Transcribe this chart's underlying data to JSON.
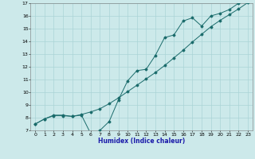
{
  "xlabel": "Humidex (Indice chaleur)",
  "xlim": [
    -0.5,
    23.5
  ],
  "ylim": [
    7,
    17
  ],
  "yticks": [
    7,
    8,
    9,
    10,
    11,
    12,
    13,
    14,
    15,
    16,
    17
  ],
  "xticks": [
    0,
    1,
    2,
    3,
    4,
    5,
    6,
    7,
    8,
    9,
    10,
    11,
    12,
    13,
    14,
    15,
    16,
    17,
    18,
    19,
    20,
    21,
    22,
    23
  ],
  "background_color": "#cce9ea",
  "grid_color": "#aad4d6",
  "line_color": "#1a6b6b",
  "line1_x": [
    0,
    1,
    2,
    3,
    4,
    5,
    6,
    7,
    8,
    9,
    10,
    11,
    12,
    13,
    14,
    15,
    16,
    17,
    18,
    19,
    20,
    21,
    22,
    23
  ],
  "line1_y": [
    7.5,
    7.9,
    8.2,
    8.2,
    8.1,
    8.2,
    6.75,
    7.0,
    7.7,
    9.4,
    10.9,
    11.7,
    11.8,
    12.9,
    14.3,
    14.5,
    15.6,
    15.85,
    15.2,
    16.0,
    16.2,
    16.5,
    17.0,
    17.1
  ],
  "line2_x": [
    0,
    1,
    2,
    3,
    4,
    5,
    6,
    7,
    8,
    9,
    10,
    11,
    12,
    13,
    14,
    15,
    16,
    17,
    18,
    19,
    20,
    21,
    22,
    23
  ],
  "line2_y": [
    7.5,
    7.9,
    8.15,
    8.15,
    8.1,
    8.25,
    8.45,
    8.7,
    9.1,
    9.55,
    10.05,
    10.55,
    11.05,
    11.55,
    12.1,
    12.7,
    13.3,
    13.95,
    14.55,
    15.15,
    15.65,
    16.1,
    16.55,
    17.05
  ]
}
